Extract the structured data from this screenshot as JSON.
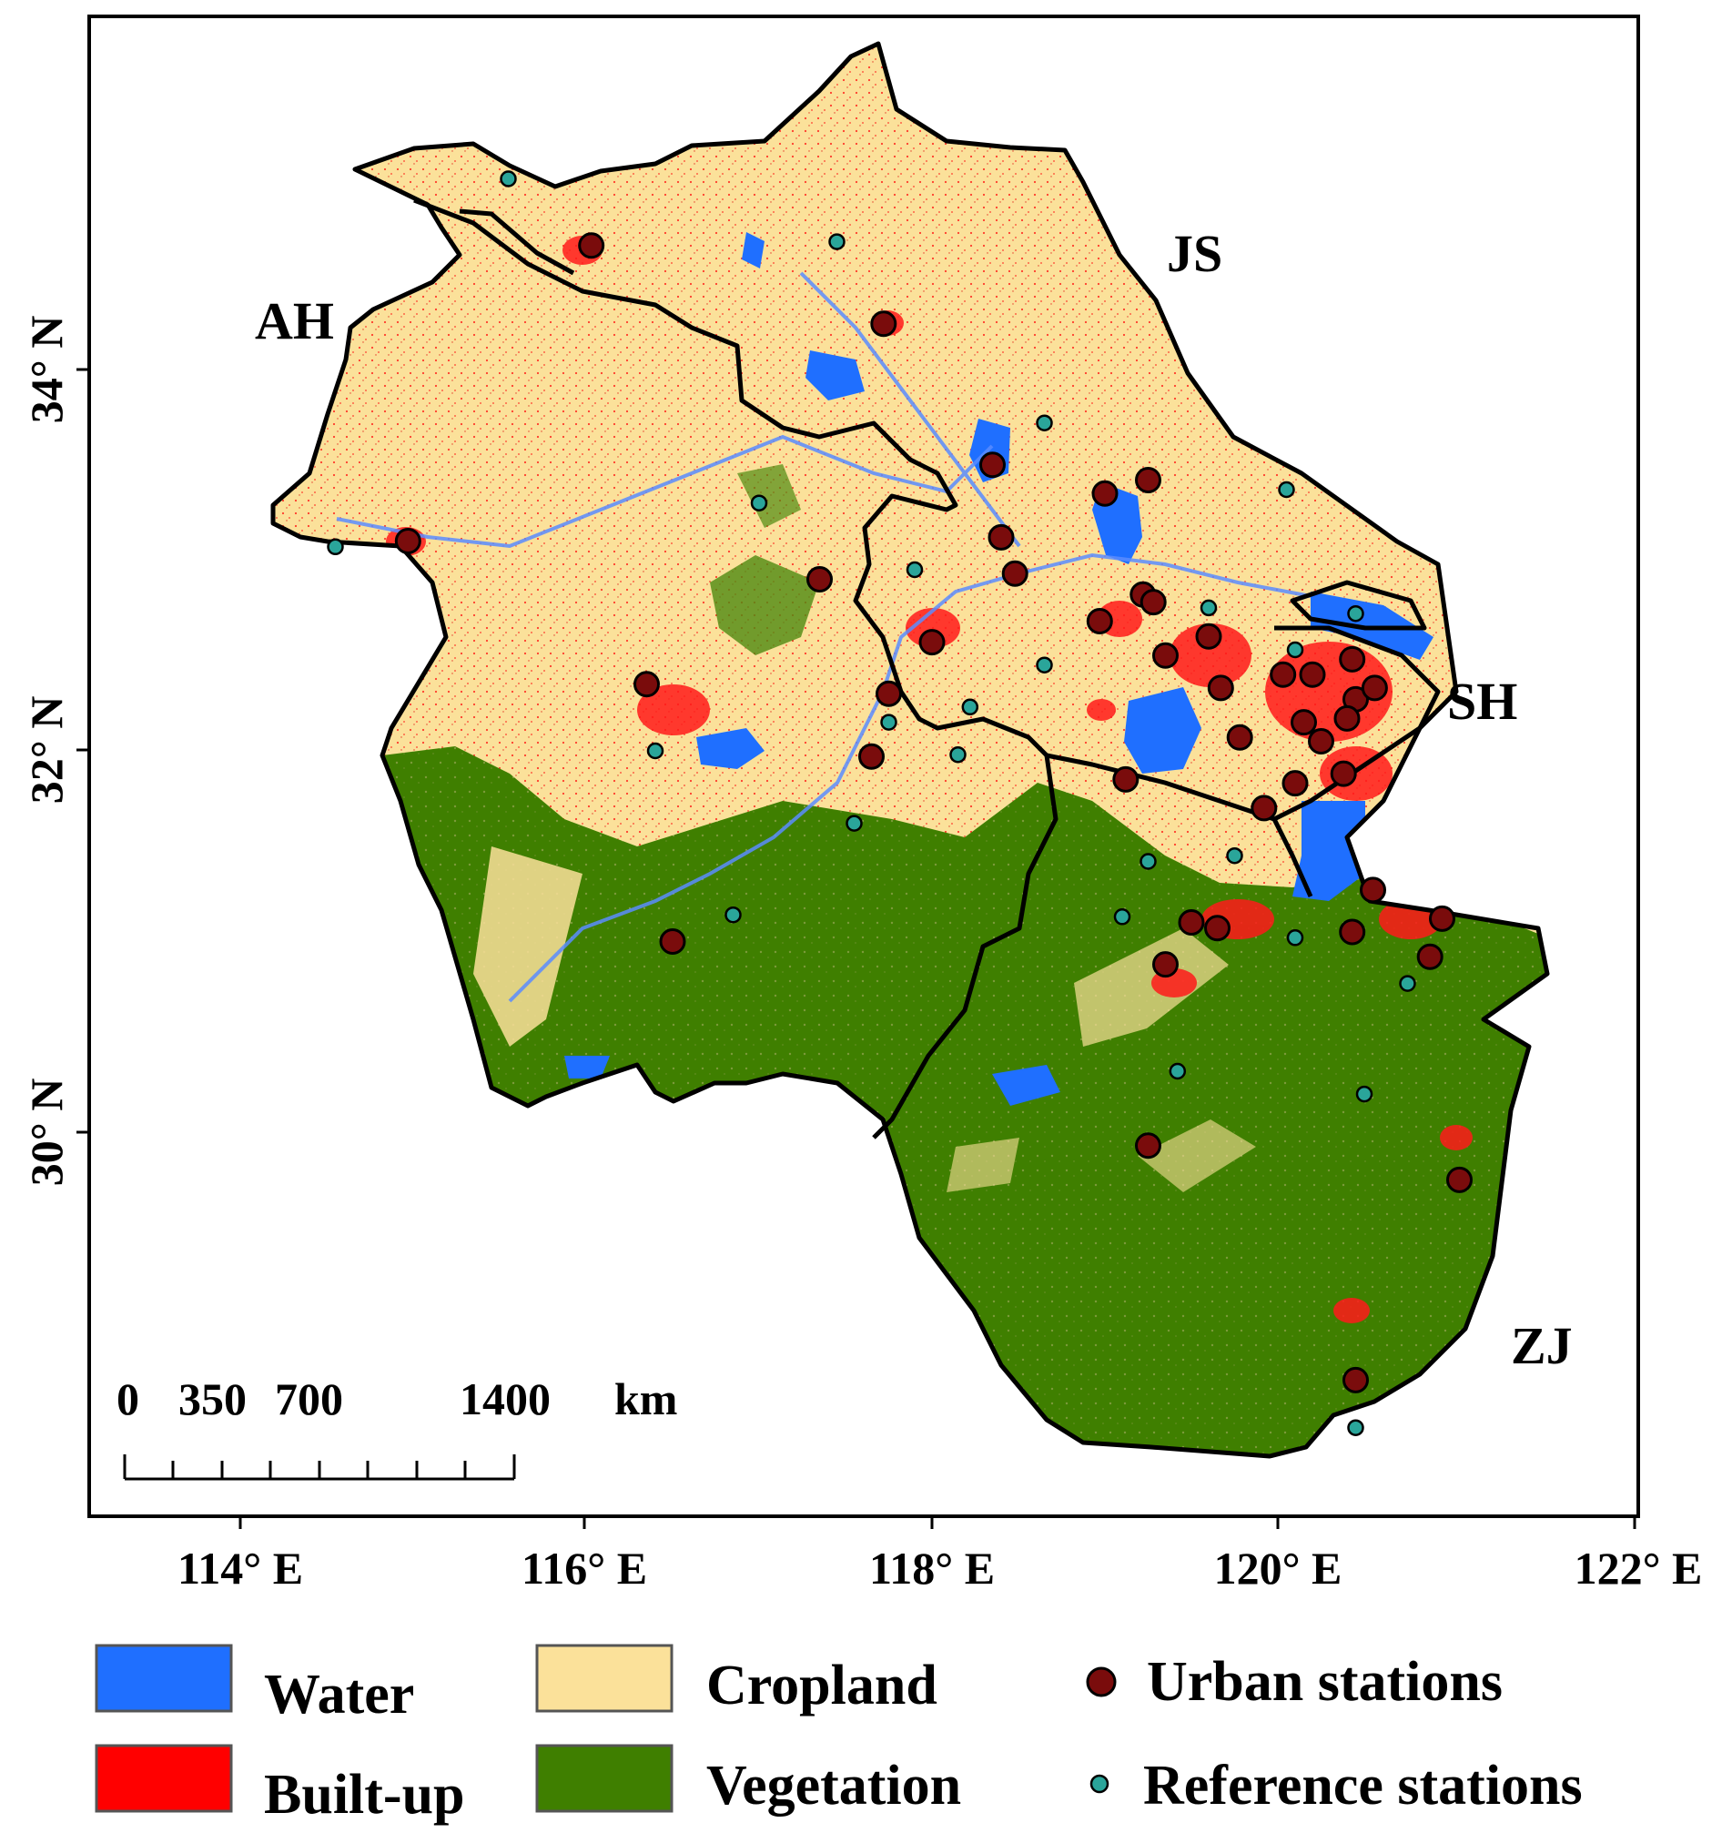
{
  "regions": [
    {
      "code": "AH"
    },
    {
      "code": "JS"
    },
    {
      "code": "SH"
    },
    {
      "code": "ZJ"
    }
  ],
  "axes": {
    "x_ticks": [
      "114° E",
      "116° E",
      "118° E",
      "120° E",
      "122° E"
    ],
    "y_ticks": [
      "34° N",
      "32° N",
      "30° N"
    ]
  },
  "scale_bar": {
    "labels": [
      "0",
      "350",
      "700",
      "1400"
    ],
    "unit": "km"
  },
  "legend": {
    "items": [
      {
        "label": "Water",
        "color": "#1f6fff",
        "kind": "swatch"
      },
      {
        "label": "Built-up",
        "color": "#ff0000",
        "kind": "swatch"
      },
      {
        "label": "Cropland",
        "color": "#fbe19a",
        "kind": "swatch"
      },
      {
        "label": "Vegetation",
        "color": "#3f7f00",
        "kind": "swatch"
      },
      {
        "label": "Urban stations",
        "color": "#7a0c0c",
        "kind": "large-dot"
      },
      {
        "label": "Reference stations",
        "color": "#2aa59a",
        "kind": "small-dot"
      }
    ]
  },
  "colors": {
    "water": "#1f6fff",
    "builtup": "#ff0000",
    "cropland": "#fbe19a",
    "vegetation": "#3f7f00",
    "urban_station": "#7a0c0c",
    "reference_station": "#2aa59a",
    "boundary": "#000000"
  },
  "stations": {
    "urban": [
      {
        "lon": 116.03,
        "lat": 34.65
      },
      {
        "lon": 117.72,
        "lat": 34.24
      },
      {
        "lon": 114.97,
        "lat": 33.1
      },
      {
        "lon": 118.35,
        "lat": 33.5
      },
      {
        "lon": 119.0,
        "lat": 33.35
      },
      {
        "lon": 119.25,
        "lat": 33.42
      },
      {
        "lon": 118.4,
        "lat": 33.12
      },
      {
        "lon": 117.35,
        "lat": 32.9
      },
      {
        "lon": 118.48,
        "lat": 32.93
      },
      {
        "lon": 119.22,
        "lat": 32.82
      },
      {
        "lon": 119.28,
        "lat": 32.78
      },
      {
        "lon": 118.97,
        "lat": 32.68
      },
      {
        "lon": 119.6,
        "lat": 32.6
      },
      {
        "lon": 118.0,
        "lat": 32.57
      },
      {
        "lon": 119.35,
        "lat": 32.5
      },
      {
        "lon": 119.67,
        "lat": 32.33
      },
      {
        "lon": 120.03,
        "lat": 32.4
      },
      {
        "lon": 120.2,
        "lat": 32.4
      },
      {
        "lon": 120.43,
        "lat": 32.48
      },
      {
        "lon": 120.45,
        "lat": 32.27
      },
      {
        "lon": 120.56,
        "lat": 32.33
      },
      {
        "lon": 116.35,
        "lat": 32.35
      },
      {
        "lon": 117.75,
        "lat": 32.3
      },
      {
        "lon": 120.15,
        "lat": 32.15
      },
      {
        "lon": 120.4,
        "lat": 32.17
      },
      {
        "lon": 119.78,
        "lat": 32.07
      },
      {
        "lon": 120.25,
        "lat": 32.05
      },
      {
        "lon": 117.65,
        "lat": 31.97
      },
      {
        "lon": 119.12,
        "lat": 31.85
      },
      {
        "lon": 120.1,
        "lat": 31.83
      },
      {
        "lon": 120.38,
        "lat": 31.88
      },
      {
        "lon": 119.92,
        "lat": 31.7
      },
      {
        "lon": 120.55,
        "lat": 31.27
      },
      {
        "lon": 120.95,
        "lat": 31.12
      },
      {
        "lon": 119.5,
        "lat": 31.1
      },
      {
        "lon": 119.65,
        "lat": 31.07
      },
      {
        "lon": 120.43,
        "lat": 31.05
      },
      {
        "lon": 116.5,
        "lat": 31.0
      },
      {
        "lon": 119.35,
        "lat": 30.88
      },
      {
        "lon": 120.88,
        "lat": 30.92
      },
      {
        "lon": 119.25,
        "lat": 29.93
      },
      {
        "lon": 121.05,
        "lat": 29.75
      },
      {
        "lon": 120.45,
        "lat": 28.7
      }
    ],
    "reference": [
      {
        "lon": 115.55,
        "lat": 35.0
      },
      {
        "lon": 117.45,
        "lat": 34.67
      },
      {
        "lon": 118.65,
        "lat": 33.72
      },
      {
        "lon": 120.05,
        "lat": 33.37
      },
      {
        "lon": 117.0,
        "lat": 33.3
      },
      {
        "lon": 114.55,
        "lat": 33.07
      },
      {
        "lon": 117.9,
        "lat": 32.95
      },
      {
        "lon": 119.6,
        "lat": 32.75
      },
      {
        "lon": 120.45,
        "lat": 32.72
      },
      {
        "lon": 120.1,
        "lat": 32.53
      },
      {
        "lon": 118.65,
        "lat": 32.45
      },
      {
        "lon": 118.22,
        "lat": 32.23
      },
      {
        "lon": 117.75,
        "lat": 32.15
      },
      {
        "lon": 116.4,
        "lat": 32.0
      },
      {
        "lon": 118.15,
        "lat": 31.98
      },
      {
        "lon": 117.55,
        "lat": 31.62
      },
      {
        "lon": 119.25,
        "lat": 31.42
      },
      {
        "lon": 119.75,
        "lat": 31.45
      },
      {
        "lon": 116.85,
        "lat": 31.14
      },
      {
        "lon": 119.1,
        "lat": 31.13
      },
      {
        "lon": 120.1,
        "lat": 31.02
      },
      {
        "lon": 120.75,
        "lat": 30.78
      },
      {
        "lon": 119.42,
        "lat": 30.32
      },
      {
        "lon": 120.5,
        "lat": 30.2
      },
      {
        "lon": 120.45,
        "lat": 28.45
      }
    ]
  }
}
